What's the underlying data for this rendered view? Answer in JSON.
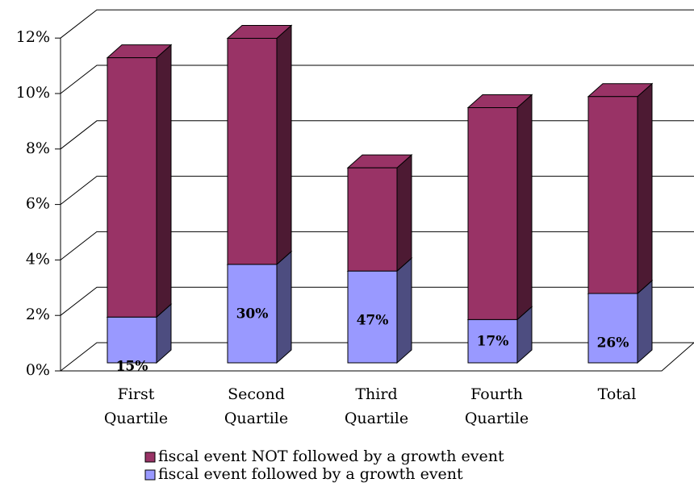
{
  "chart_data": {
    "type": "bar3d_stacked",
    "categories": [
      "First Quartile",
      "Second Quartile",
      "Third Quartile",
      "Fourth Quartile",
      "Total"
    ],
    "series": [
      {
        "name": "fiscal event followed by a growth event",
        "color": "#9999ff",
        "side_color": "#4d4d80",
        "values": [
          1.65,
          3.55,
          3.31,
          1.56,
          2.5
        ],
        "annotations": [
          "15%",
          "30%",
          "47%",
          "17%",
          "26%"
        ]
      },
      {
        "name": "fiscal event NOT followed by a growth event",
        "color": "#993366",
        "side_color": "#4d1a33",
        "values": [
          9.35,
          8.15,
          3.72,
          7.64,
          7.1
        ]
      }
    ],
    "ylim": [
      0,
      12
    ],
    "yticks": [
      {
        "value": 0,
        "label": "0%"
      },
      {
        "value": 2,
        "label": "2%"
      },
      {
        "value": 4,
        "label": "4%"
      },
      {
        "value": 6,
        "label": "6%"
      },
      {
        "value": 8,
        "label": "8%"
      },
      {
        "value": 10,
        "label": "10%"
      },
      {
        "value": 12,
        "label": "12%"
      }
    ],
    "grid": true
  }
}
